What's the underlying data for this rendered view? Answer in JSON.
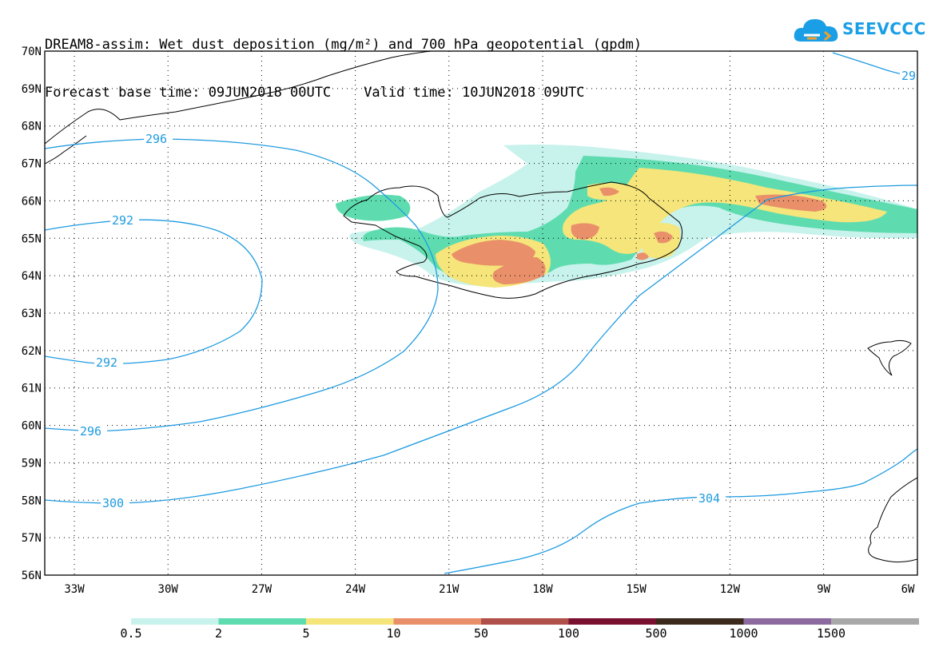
{
  "header": {
    "title_line1": "DREAM8-assim: Wet dust deposition (mg/m²) and 700 hPa geopotential (gpdm)",
    "title_line2": "Forecast base time: 09JUN2018 00UTC    Valid time: 10JUN2018 09UTC"
  },
  "logo": {
    "text": "SEEVCCC",
    "icon": "cloud-icon",
    "color": "#1a9fe6"
  },
  "map": {
    "lat_labels": [
      "70N",
      "69N",
      "68N",
      "67N",
      "66N",
      "65N",
      "64N",
      "63N",
      "62N",
      "61N",
      "60N",
      "59N",
      "58N",
      "57N",
      "56N"
    ],
    "lon_labels": [
      "33W",
      "30W",
      "27W",
      "24W",
      "21W",
      "18W",
      "15W",
      "12W",
      "9W",
      "6W"
    ],
    "contour_color": "#1e9be0",
    "contour_labels": [
      "296",
      "292",
      "292",
      "296",
      "300",
      "304",
      "29"
    ]
  },
  "legend": {
    "labels": [
      "0.5",
      "2",
      "5",
      "10",
      "50",
      "100",
      "500",
      "1000",
      "1500"
    ],
    "colors": [
      "#c8f2ec",
      "#5edcb0",
      "#f5e57a",
      "#e9906a",
      "#b0504a",
      "#7a1030",
      "#3b2a1c",
      "#8c6aa0",
      "#a8a8a8"
    ]
  }
}
